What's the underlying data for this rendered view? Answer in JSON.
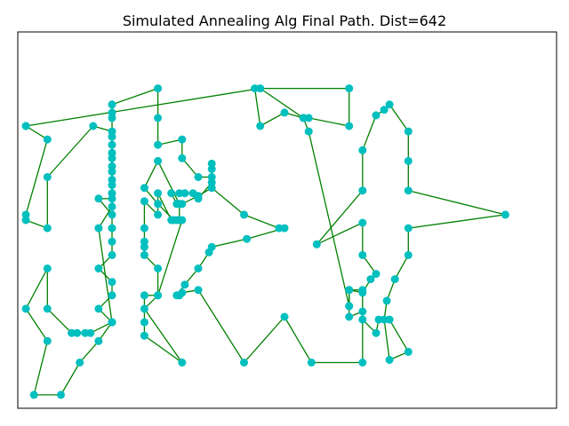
{
  "chart_data": {
    "type": "line",
    "title": "Simulated Annealing Alg Final Path. Dist=642",
    "xlabel": "",
    "ylabel": "",
    "xlim": [
      0,
      200
    ],
    "ylim": [
      0,
      140
    ],
    "grid": false,
    "axis_ticks_visible": false,
    "closed_path": true,
    "colors": {
      "line": "#008000",
      "marker": "#00bfbf",
      "frame": "#000000",
      "background": "#ffffff"
    },
    "path": [
      [
        3,
        105
      ],
      [
        11,
        100
      ],
      [
        3,
        72
      ],
      [
        3,
        70
      ],
      [
        11,
        67
      ],
      [
        11,
        86
      ],
      [
        28,
        105
      ],
      [
        35,
        103
      ],
      [
        35,
        98
      ],
      [
        35,
        93
      ],
      [
        35,
        88
      ],
      [
        35,
        83
      ],
      [
        35,
        78
      ],
      [
        30,
        78
      ],
      [
        35,
        72
      ],
      [
        35,
        67
      ],
      [
        35,
        62
      ],
      [
        35,
        57
      ],
      [
        30,
        52
      ],
      [
        35,
        47
      ],
      [
        35,
        42
      ],
      [
        30,
        37
      ],
      [
        35,
        32
      ],
      [
        27,
        28
      ],
      [
        25,
        28
      ],
      [
        22,
        28
      ],
      [
        20,
        28
      ],
      [
        11,
        37
      ],
      [
        11,
        52
      ],
      [
        3,
        37
      ],
      [
        11,
        25
      ],
      [
        6,
        5
      ],
      [
        16,
        5
      ],
      [
        23,
        17
      ],
      [
        30,
        25
      ],
      [
        35,
        32
      ],
      [
        30,
        67
      ],
      [
        35,
        75
      ],
      [
        35,
        80
      ],
      [
        35,
        85
      ],
      [
        35,
        90
      ],
      [
        35,
        95
      ],
      [
        35,
        101
      ],
      [
        35,
        108
      ],
      [
        35,
        110
      ],
      [
        35,
        113
      ],
      [
        52,
        119
      ],
      [
        52,
        108
      ],
      [
        52,
        98
      ],
      [
        61,
        100
      ],
      [
        61,
        93
      ],
      [
        67,
        86
      ],
      [
        72,
        86
      ],
      [
        72,
        89
      ],
      [
        72,
        91
      ],
      [
        72,
        84
      ],
      [
        67,
        78
      ],
      [
        65,
        80
      ],
      [
        62,
        80
      ],
      [
        60,
        80
      ],
      [
        57,
        80
      ],
      [
        59,
        76
      ],
      [
        60,
        76
      ],
      [
        60,
        70
      ],
      [
        59,
        70
      ],
      [
        57,
        70
      ],
      [
        52,
        80
      ],
      [
        52,
        72
      ],
      [
        47,
        77
      ],
      [
        47,
        67
      ],
      [
        47,
        62
      ],
      [
        47,
        60
      ],
      [
        47,
        57
      ],
      [
        52,
        52
      ],
      [
        52,
        42
      ],
      [
        47,
        42
      ],
      [
        47,
        32
      ],
      [
        47,
        27
      ],
      [
        61,
        17
      ],
      [
        47,
        37
      ],
      [
        52,
        42
      ],
      [
        61,
        70
      ],
      [
        58,
        70
      ],
      [
        52,
        76
      ],
      [
        47,
        82
      ],
      [
        52,
        92
      ],
      [
        60,
        76
      ],
      [
        61,
        76
      ],
      [
        67,
        79
      ],
      [
        72,
        82
      ],
      [
        84,
        72
      ],
      [
        97,
        67
      ],
      [
        99,
        67
      ],
      [
        85,
        63
      ],
      [
        72,
        60
      ],
      [
        71,
        58
      ],
      [
        67,
        52
      ],
      [
        62,
        46
      ],
      [
        59,
        42
      ],
      [
        60,
        42
      ],
      [
        61,
        43
      ],
      [
        67,
        44
      ],
      [
        84,
        17
      ],
      [
        99,
        34
      ],
      [
        109,
        17
      ],
      [
        128,
        17
      ],
      [
        128,
        36
      ],
      [
        123,
        34
      ],
      [
        123,
        38
      ],
      [
        123,
        44
      ],
      [
        128,
        43
      ],
      [
        131,
        48
      ],
      [
        133,
        50
      ],
      [
        128,
        57
      ],
      [
        128,
        69
      ],
      [
        111,
        61
      ],
      [
        128,
        81
      ],
      [
        128,
        96
      ],
      [
        133,
        109
      ],
      [
        136,
        111
      ],
      [
        138,
        113
      ],
      [
        145,
        103
      ],
      [
        145,
        92
      ],
      [
        145,
        81
      ],
      [
        181,
        72
      ],
      [
        145,
        67
      ],
      [
        145,
        57
      ],
      [
        140,
        48
      ],
      [
        137,
        40
      ],
      [
        136,
        33
      ],
      [
        138,
        18
      ],
      [
        145,
        21
      ],
      [
        138,
        33
      ],
      [
        134,
        33
      ],
      [
        133,
        28
      ],
      [
        128,
        33
      ],
      [
        128,
        44
      ],
      [
        123,
        44
      ],
      [
        123,
        38
      ],
      [
        108,
        103
      ],
      [
        106,
        108
      ],
      [
        99,
        110
      ],
      [
        90,
        105
      ],
      [
        88,
        119
      ],
      [
        123,
        119
      ],
      [
        123,
        105
      ],
      [
        108,
        108
      ],
      [
        106,
        108
      ],
      [
        90,
        119
      ],
      [
        3,
        105
      ]
    ]
  }
}
